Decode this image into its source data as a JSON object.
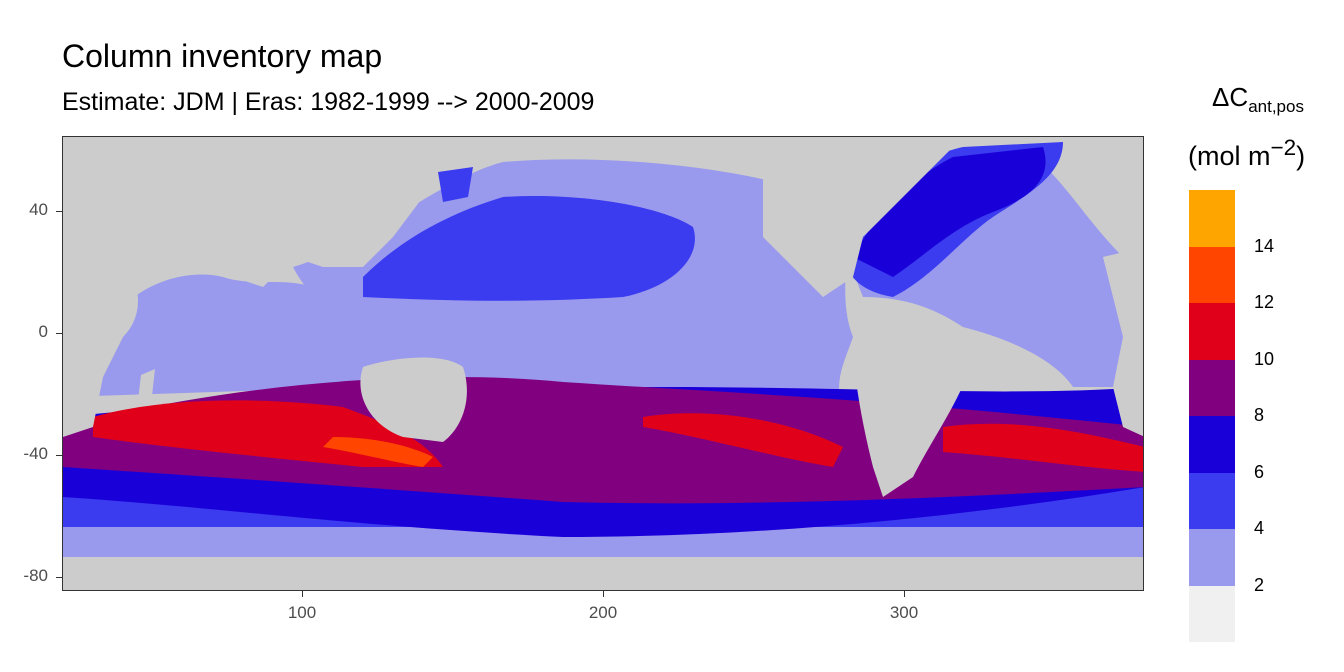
{
  "title": "Column inventory map",
  "subtitle": "Estimate: JDM  | Eras: 1982-1999 --> 2000-2009",
  "legend": {
    "title_main": "ΔC",
    "title_sub": "ant,pos",
    "unit_main": "(mol m",
    "unit_sup": "−2",
    "unit_close": ")",
    "bins": [
      {
        "color": "#ffa500"
      },
      {
        "color": "#ff4500"
      },
      {
        "color": "#e0001a"
      },
      {
        "color": "#800080"
      },
      {
        "color": "#1a00d8"
      },
      {
        "color": "#3b3bf0"
      },
      {
        "color": "#9999ee"
      },
      {
        "color": "#f0f0f0"
      }
    ],
    "labels": [
      "14",
      "12",
      "10",
      "8",
      "6",
      "4",
      "2"
    ]
  },
  "axes": {
    "y_ticks": [
      "40",
      "0",
      "-40",
      "-80"
    ],
    "x_ticks": [
      "100",
      "200",
      "300"
    ]
  },
  "map": {
    "land_color": "#cccccc",
    "x_range": [
      20,
      380
    ],
    "y_range": [
      -85,
      65
    ]
  }
}
